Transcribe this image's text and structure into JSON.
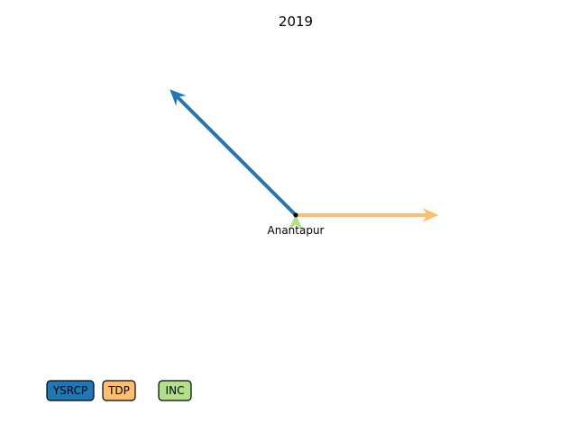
{
  "chart_data": {
    "type": "vector",
    "title": "2019",
    "origin": {
      "label": "Anantapur",
      "marker_color": "#000000"
    },
    "vectors": [
      {
        "party": "YSRCP",
        "color": "#1f77b4",
        "dx": -0.3,
        "dy": 0.3
      },
      {
        "party": "TDP",
        "color": "#fdbf6f",
        "dx": 0.34,
        "dy": 0.0
      },
      {
        "party": "INC",
        "color": "#b2df8a",
        "dx": 0.0,
        "dy": 0.003
      }
    ],
    "legend": {
      "placement": "bottom-left",
      "entries": [
        {
          "label": "YSRCP",
          "color": "#1f77b4"
        },
        {
          "label": "TDP",
          "color": "#fdbf6f"
        },
        {
          "label": "INC",
          "color": "#b2df8a"
        }
      ]
    },
    "axes_visible": false,
    "grid": false
  }
}
